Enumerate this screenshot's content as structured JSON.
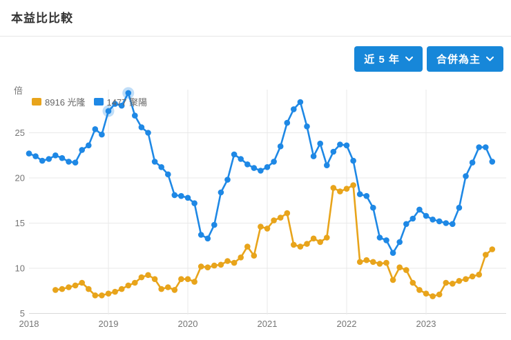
{
  "header": {
    "title": "本益比比較"
  },
  "toolbar": {
    "range_button": {
      "label": "近 5 年"
    },
    "mode_button": {
      "label": "合併為主"
    }
  },
  "colors": {
    "button_blue": "#1787D9",
    "series_yellow": "#E8A41B",
    "series_blue": "#1E88E5",
    "grid": "#E9E9E9",
    "grid_bottom": "#D9D9D9",
    "axis_text": "#757575",
    "highlight_halo": "rgba(30,136,229,0.28)"
  },
  "chart_data": {
    "type": "line",
    "title": "本益比比較",
    "unit_label": "倍",
    "x_axis": {
      "tick_labels": [
        "2018",
        "2019",
        "2020",
        "2021",
        "2022",
        "2023"
      ],
      "months_per_year": 12,
      "start": "2018-01",
      "end": "2023-11"
    },
    "y_axis": {
      "ticks": [
        5,
        10,
        15,
        20,
        25
      ],
      "min": 5,
      "max": 29.8,
      "grid": true
    },
    "legend_position": "top-left",
    "series": [
      {
        "id": "kl",
        "name": "8916 光隆",
        "color": "#E8A41B",
        "start_month_index": 4,
        "values": [
          7.6,
          7.7,
          7.9,
          8.1,
          8.4,
          7.7,
          7.0,
          7.0,
          7.2,
          7.4,
          7.7,
          8.1,
          8.4,
          9.0,
          9.25,
          8.8,
          7.7,
          7.9,
          7.6,
          8.8,
          8.8,
          8.5,
          10.2,
          10.1,
          10.3,
          10.4,
          10.8,
          10.6,
          11.2,
          12.4,
          11.4,
          14.6,
          14.4,
          15.3,
          15.6,
          16.1,
          12.6,
          12.4,
          12.7,
          13.3,
          12.9,
          13.4,
          18.9,
          18.5,
          18.8,
          19.2,
          10.7,
          10.9,
          10.7,
          10.5,
          10.6,
          8.7,
          10.1,
          9.8,
          8.4,
          7.6,
          7.2,
          6.9,
          7.1,
          8.4,
          8.3,
          8.6,
          8.8,
          9.1,
          9.3,
          11.5,
          12.1
        ]
      },
      {
        "id": "jy",
        "name": "1477 聚陽",
        "color": "#1E88E5",
        "start_month_index": 0,
        "highlight_indices": [
          12,
          15
        ],
        "values": [
          22.7,
          22.4,
          21.9,
          22.1,
          22.5,
          22.2,
          21.8,
          21.7,
          23.1,
          23.6,
          25.4,
          24.8,
          27.4,
          28.2,
          28.0,
          29.4,
          26.9,
          25.6,
          25.0,
          21.8,
          21.2,
          20.4,
          18.1,
          18.0,
          17.8,
          17.2,
          13.7,
          13.3,
          14.8,
          18.4,
          19.8,
          22.6,
          22.1,
          21.5,
          21.1,
          20.8,
          21.2,
          21.8,
          23.5,
          26.1,
          27.6,
          28.4,
          25.7,
          22.4,
          23.8,
          21.4,
          22.9,
          23.7,
          23.6,
          21.9,
          18.2,
          18.0,
          16.7,
          13.4,
          13.1,
          11.7,
          12.9,
          14.9,
          15.5,
          16.5,
          15.8,
          15.4,
          15.2,
          15.0,
          14.9,
          16.7,
          20.2,
          21.7,
          23.4,
          23.4,
          21.8
        ]
      }
    ]
  }
}
